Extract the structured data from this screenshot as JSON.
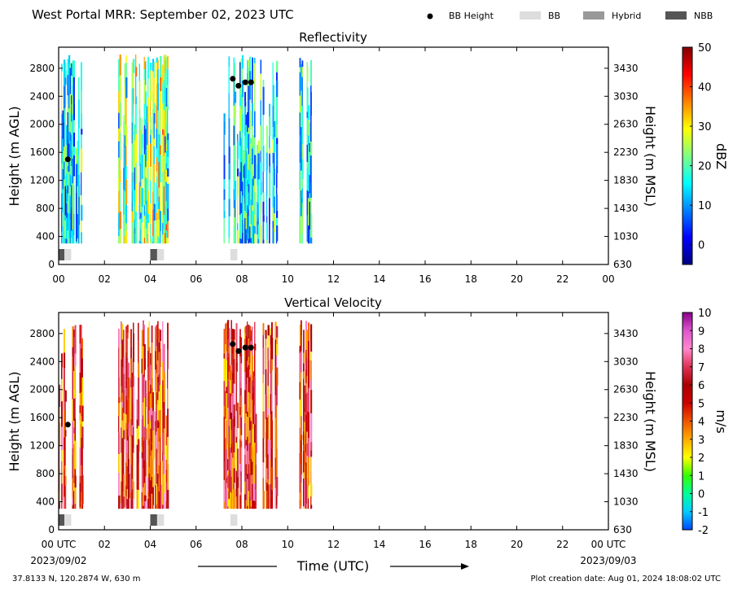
{
  "figure": {
    "header_title": "West Portal MRR:  September 02, 2023 UTC",
    "legend": [
      {
        "label": "BB Height",
        "color": "#000000",
        "kind": "dot"
      },
      {
        "label": "BB",
        "color": "#dddddd",
        "kind": "box"
      },
      {
        "label": "Hybrid",
        "color": "#999999",
        "kind": "box"
      },
      {
        "label": "NBB",
        "color": "#555555",
        "kind": "box"
      }
    ],
    "xlabel": "Time (UTC)",
    "x_tick_labels": [
      "00",
      "02",
      "04",
      "06",
      "08",
      "10",
      "12",
      "14",
      "16",
      "18",
      "20",
      "22",
      "00"
    ],
    "x_tick_labels_bottom": [
      "00 UTC",
      "02",
      "04",
      "06",
      "08",
      "10",
      "12",
      "14",
      "16",
      "18",
      "20",
      "22",
      "00 UTC"
    ],
    "start_date": "2023/09/02",
    "end_date": "2023/09/03",
    "footer_left": "37.8133 N, 120.2874 W, 630 m",
    "footer_right": "Plot creation date: Aug 01, 2024 18:08:02 UTC"
  },
  "chart_data": [
    {
      "type": "heatmap",
      "title": "Reflectivity",
      "ylabel": "Height (m AGL)",
      "y2label": "Height (m MSL)",
      "xlim": [
        0,
        24
      ],
      "ylim": [
        0,
        3100
      ],
      "y_ticks": [
        0,
        400,
        800,
        1200,
        1600,
        2000,
        2400,
        2800
      ],
      "y2_ticks": [
        630,
        1030,
        1430,
        1830,
        2230,
        2630,
        3030,
        3430
      ],
      "colorbar": {
        "label": "dBZ",
        "min": -5,
        "max": 50,
        "ticks": [
          0,
          10,
          20,
          30,
          40,
          50
        ],
        "colorscale": [
          "#000080",
          "#0000ff",
          "#0080ff",
          "#00ffff",
          "#80ff80",
          "#ffff00",
          "#ff8000",
          "#ff0000",
          "#800000"
        ]
      },
      "echo_periods_hours": [
        [
          0.0,
          1.1
        ],
        [
          2.6,
          4.8
        ],
        [
          7.2,
          9.5
        ],
        [
          10.4,
          11.0
        ]
      ],
      "echo_height_range_m": [
        300,
        3000
      ],
      "bb_height": [
        {
          "time": 0.4,
          "height": 1500
        },
        {
          "time": 7.6,
          "height": 2650
        },
        {
          "time": 7.85,
          "height": 2550
        },
        {
          "time": 8.15,
          "height": 2600
        },
        {
          "time": 8.4,
          "height": 2600
        }
      ],
      "bb_class_segments": [
        {
          "start": 0.0,
          "end": 0.25,
          "class": "NBB"
        },
        {
          "start": 0.25,
          "end": 0.55,
          "class": "BB"
        },
        {
          "start": 4.0,
          "end": 4.3,
          "class": "NBB"
        },
        {
          "start": 4.3,
          "end": 4.6,
          "class": "BB"
        },
        {
          "start": 7.5,
          "end": 7.8,
          "class": "BB"
        }
      ]
    },
    {
      "type": "heatmap",
      "title": "Vertical Velocity",
      "ylabel": "Height (m AGL)",
      "y2label": "Height (m MSL)",
      "xlim": [
        0,
        24
      ],
      "ylim": [
        0,
        3100
      ],
      "y_ticks": [
        0,
        400,
        800,
        1200,
        1600,
        2000,
        2400,
        2800
      ],
      "y2_ticks": [
        630,
        1030,
        1430,
        1830,
        2230,
        2630,
        3030,
        3430
      ],
      "colorbar": {
        "label": "m/s",
        "min": -2,
        "max": 10,
        "ticks": [
          -2,
          -1,
          0,
          1,
          2,
          3,
          4,
          5,
          6,
          7,
          8,
          9,
          10
        ],
        "colorscale": [
          "#0044ff",
          "#00ccff",
          "#00ff99",
          "#33ff00",
          "#ffff00",
          "#ffaa00",
          "#ee5500",
          "#cc0000",
          "#aa0000",
          "#dd3355",
          "#ff88cc",
          "#dd55cc",
          "#880088"
        ]
      },
      "echo_periods_hours": [
        [
          0.0,
          1.1
        ],
        [
          2.6,
          4.8
        ],
        [
          7.2,
          9.5
        ],
        [
          10.4,
          11.0
        ]
      ],
      "echo_height_range_m": [
        300,
        3000
      ],
      "bb_height": [
        {
          "time": 0.4,
          "height": 1500
        },
        {
          "time": 7.6,
          "height": 2650
        },
        {
          "time": 7.85,
          "height": 2550
        },
        {
          "time": 8.15,
          "height": 2600
        },
        {
          "time": 8.4,
          "height": 2600
        }
      ],
      "bb_class_segments": [
        {
          "start": 0.0,
          "end": 0.25,
          "class": "NBB"
        },
        {
          "start": 0.25,
          "end": 0.55,
          "class": "BB"
        },
        {
          "start": 4.0,
          "end": 4.3,
          "class": "NBB"
        },
        {
          "start": 4.3,
          "end": 4.6,
          "class": "BB"
        },
        {
          "start": 7.5,
          "end": 7.8,
          "class": "BB"
        }
      ]
    }
  ]
}
